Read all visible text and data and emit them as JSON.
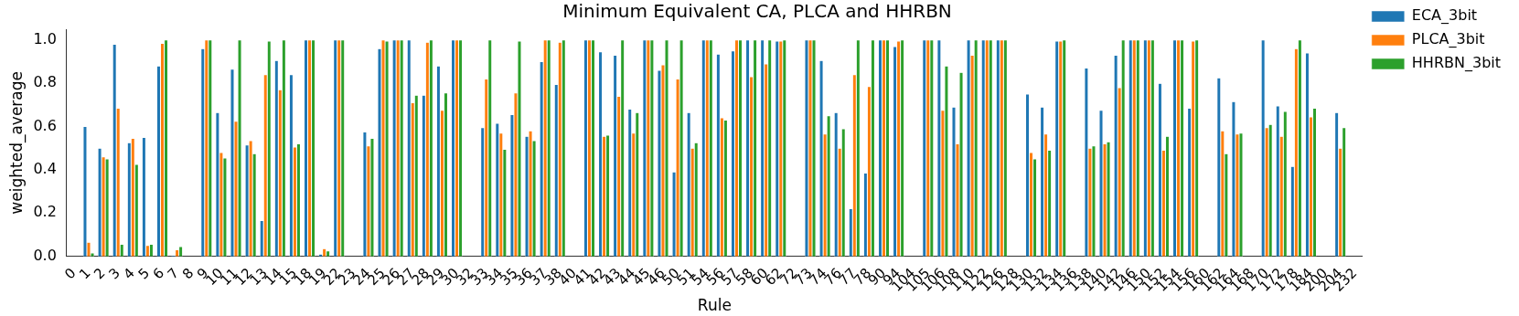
{
  "chart_data": {
    "type": "bar",
    "title": "Minimum Equivalent CA, PLCA and HHRBN",
    "xlabel": "Rule",
    "ylabel": "weighted_average",
    "categories": [
      "0",
      "1",
      "2",
      "3",
      "4",
      "5",
      "6",
      "7",
      "8",
      "9",
      "10",
      "11",
      "12",
      "13",
      "14",
      "15",
      "18",
      "19",
      "22",
      "23",
      "24",
      "25",
      "26",
      "27",
      "28",
      "29",
      "30",
      "32",
      "33",
      "34",
      "35",
      "36",
      "37",
      "38",
      "40",
      "41",
      "42",
      "43",
      "44",
      "45",
      "46",
      "50",
      "51",
      "54",
      "56",
      "57",
      "58",
      "60",
      "62",
      "72",
      "73",
      "74",
      "76",
      "77",
      "78",
      "90",
      "94",
      "104",
      "105",
      "106",
      "108",
      "110",
      "122",
      "126",
      "128",
      "130",
      "132",
      "134",
      "136",
      "138",
      "140",
      "142",
      "146",
      "150",
      "152",
      "154",
      "156",
      "160",
      "162",
      "164",
      "168",
      "170",
      "172",
      "178",
      "184",
      "200",
      "204",
      "232"
    ],
    "series": [
      {
        "name": "ECA_3bit",
        "color": "#1f77b4",
        "values": [
          0,
          0.6,
          0.5,
          0.98,
          0.525,
          0.55,
          0.88,
          0.005,
          0,
          0.96,
          0.665,
          0.865,
          0.515,
          0.165,
          0.905,
          0.84,
          1,
          0.01,
          1,
          0,
          0.575,
          0.96,
          1,
          1,
          0.745,
          0.88,
          1,
          0,
          0.595,
          0.615,
          0.655,
          0.555,
          0.9,
          0.795,
          0,
          1,
          0.945,
          0.93,
          0.68,
          1,
          0.86,
          0.39,
          0.665,
          1,
          0.935,
          0.95,
          1,
          1,
          0.995,
          0,
          1,
          0.905,
          0.665,
          0.22,
          0.385,
          1,
          0.97,
          0,
          1,
          1,
          0.69,
          1,
          1,
          1,
          0,
          0.75,
          0.69,
          0.995,
          0,
          0.87,
          0.675,
          0.93,
          1,
          1,
          0.8,
          1,
          0.685,
          0,
          0.825,
          0.715,
          0,
          1,
          0.695,
          0.415,
          0.94,
          0,
          0.665,
          0
        ]
      },
      {
        "name": "PLCA_3bit",
        "color": "#ff7f0e",
        "values": [
          0,
          0.065,
          0.46,
          0.685,
          0.545,
          0.05,
          0.985,
          0.03,
          0,
          1,
          0.48,
          0.625,
          0.535,
          0.84,
          0.77,
          0.505,
          1,
          0.035,
          1,
          0,
          0.51,
          1,
          1,
          0.71,
          0.99,
          0.675,
          1,
          0,
          0.82,
          0.57,
          0.755,
          0.58,
          1,
          0.99,
          0,
          1,
          0.555,
          0.74,
          0.57,
          1,
          0.885,
          0.82,
          0.5,
          1,
          0.64,
          1,
          0.83,
          0.89,
          0.995,
          0,
          1,
          0.565,
          0.5,
          0.84,
          0.785,
          1,
          0.995,
          0,
          1,
          0.675,
          0.52,
          0.93,
          1,
          1,
          0,
          0.48,
          0.565,
          0.995,
          0,
          0.5,
          0.52,
          0.78,
          1,
          1,
          0.49,
          1,
          0.995,
          0,
          0.58,
          0.565,
          0,
          0.595,
          0.555,
          0.96,
          0.645,
          0,
          0.5,
          0
        ]
      },
      {
        "name": "HHRBN_3bit",
        "color": "#2ca02c",
        "values": [
          0,
          0.015,
          0.45,
          0.055,
          0.425,
          0.055,
          1,
          0.045,
          0,
          1,
          0.455,
          1,
          0.475,
          0.995,
          1,
          0.52,
          1,
          0.025,
          1,
          0,
          0.545,
          0.995,
          1,
          0.745,
          1,
          0.755,
          1,
          0,
          1,
          0.495,
          0.995,
          0.535,
          1,
          1,
          0,
          1,
          0.56,
          1,
          0.665,
          1,
          1,
          1,
          0.525,
          1,
          0.63,
          1,
          1,
          1,
          1,
          0,
          1,
          0.65,
          0.59,
          1,
          1,
          1,
          1,
          0,
          1,
          0.88,
          0.85,
          1,
          1,
          1,
          0,
          0.45,
          0.49,
          1,
          0,
          0.51,
          0.53,
          1,
          1,
          1,
          0.555,
          1,
          1,
          0,
          0.475,
          0.57,
          0,
          0.61,
          0.67,
          1,
          0.685,
          0,
          0.595,
          0
        ]
      }
    ],
    "ylim": [
      0,
      1.05
    ],
    "yticks": [
      {
        "value": 0,
        "label": "0.0"
      },
      {
        "value": 0.2,
        "label": "0.2"
      },
      {
        "value": 0.4,
        "label": "0.4"
      },
      {
        "value": 0.6,
        "label": "0.6"
      },
      {
        "value": 0.8,
        "label": "0.8"
      },
      {
        "value": 1,
        "label": "1.0"
      }
    ],
    "grid": false,
    "legend": "top right"
  }
}
